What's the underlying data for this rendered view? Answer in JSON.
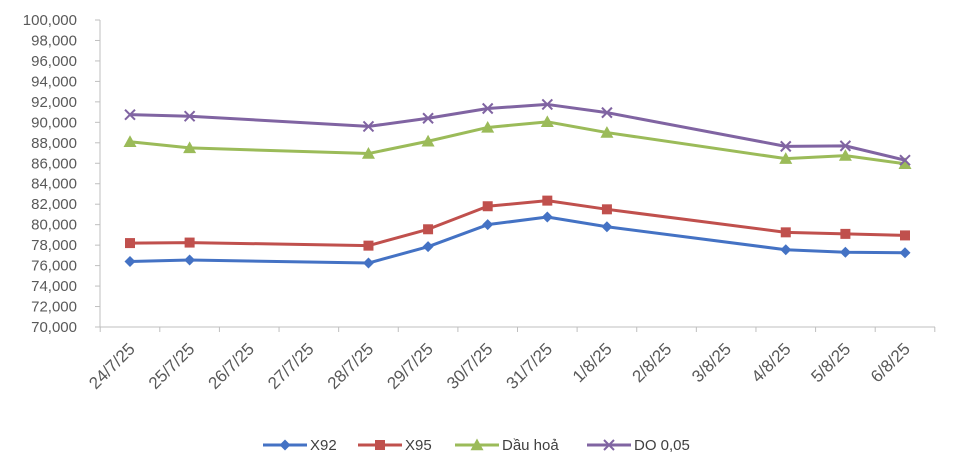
{
  "chart_data": {
    "type": "line",
    "title": "",
    "xlabel": "",
    "ylabel": "",
    "categories": [
      "24/7/25",
      "25/7/25",
      "26/7/25",
      "27/7/25",
      "28/7/25",
      "29/7/25",
      "30/7/25",
      "31/7/25",
      "1/8/25",
      "2/8/25",
      "3/8/25",
      "4/8/25",
      "5/8/25",
      "6/8/25"
    ],
    "ylim": [
      70000,
      100000
    ],
    "ytick_step": 2000,
    "ytick_labels": [
      "70,000",
      "72,000",
      "74,000",
      "76,000",
      "78,000",
      "80,000",
      "82,000",
      "84,000",
      "86,000",
      "88,000",
      "90,000",
      "92,000",
      "94,000",
      "96,000",
      "98,000",
      "100,000"
    ],
    "grid": false,
    "legend": "bottom",
    "series": [
      {
        "name": "X92",
        "color": "#4472C4",
        "marker": "diamond",
        "values": [
          76400,
          76550,
          null,
          null,
          76250,
          77850,
          80000,
          80750,
          79800,
          null,
          null,
          77550,
          77300,
          77250
        ]
      },
      {
        "name": "X95",
        "color": "#C0504D",
        "marker": "square",
        "values": [
          78200,
          78250,
          null,
          null,
          77950,
          79550,
          81800,
          82350,
          81500,
          null,
          null,
          79250,
          79100,
          78950
        ]
      },
      {
        "name": "Dầu hoả",
        "color": "#9BBB59",
        "marker": "triangle",
        "values": [
          88100,
          87500,
          null,
          null,
          86950,
          88150,
          89500,
          90050,
          89000,
          null,
          null,
          86450,
          86750,
          85950
        ]
      },
      {
        "name": "DO 0,05",
        "color": "#8064A2",
        "marker": "x",
        "values": [
          90750,
          90600,
          null,
          null,
          89600,
          90400,
          91350,
          91750,
          90950,
          null,
          null,
          87650,
          87700,
          86300
        ]
      }
    ]
  }
}
